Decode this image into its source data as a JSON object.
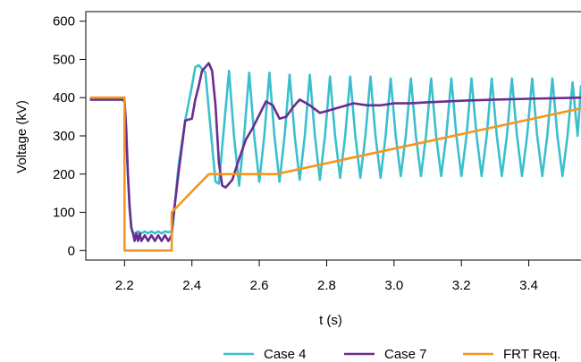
{
  "chart_data": {
    "type": "line",
    "xlabel": "t (s)",
    "ylabel": "Voltage (kV)",
    "xlim": [
      2.085,
      3.555
    ],
    "ylim": [
      -25,
      625
    ],
    "xticks": [
      2.2,
      2.4,
      2.6,
      2.8,
      3.0,
      3.2,
      3.4
    ],
    "xtick_labels": [
      "2.2",
      "2.4",
      "2.6",
      "2.8",
      "3.0",
      "3.2",
      "3.4"
    ],
    "yticks": [
      0,
      100,
      200,
      300,
      400,
      500,
      600
    ],
    "ytick_labels": [
      "0",
      "100",
      "200",
      "300",
      "400",
      "500",
      "600"
    ],
    "grid": false,
    "legend_position": "bottom",
    "series": [
      {
        "name": "Case 4",
        "color": "#3bbfce",
        "x": [
          2.1,
          2.19,
          2.2,
          2.21,
          2.215,
          2.22,
          2.225,
          2.23,
          2.24,
          2.25,
          2.26,
          2.27,
          2.28,
          2.29,
          2.3,
          2.31,
          2.32,
          2.33,
          2.34,
          2.345,
          2.36,
          2.38,
          2.4,
          2.41,
          2.42,
          2.44,
          2.47,
          2.48,
          2.495,
          2.51,
          2.525,
          2.54,
          2.555,
          2.57,
          2.585,
          2.6,
          2.615,
          2.63,
          2.645,
          2.66,
          2.675,
          2.69,
          2.705,
          2.72,
          2.735,
          2.75,
          2.765,
          2.78,
          2.795,
          2.81,
          2.825,
          2.84,
          2.855,
          2.87,
          2.885,
          2.9,
          2.915,
          2.93,
          2.945,
          2.96,
          2.975,
          2.99,
          3.005,
          3.02,
          3.035,
          3.05,
          3.065,
          3.08,
          3.095,
          3.11,
          3.125,
          3.14,
          3.155,
          3.17,
          3.185,
          3.2,
          3.215,
          3.23,
          3.245,
          3.26,
          3.275,
          3.29,
          3.305,
          3.32,
          3.335,
          3.35,
          3.365,
          3.38,
          3.395,
          3.41,
          3.425,
          3.44,
          3.455,
          3.47,
          3.485,
          3.5,
          3.515,
          3.53,
          3.545,
          3.555
        ],
        "y": [
          395,
          395,
          390,
          200,
          120,
          60,
          45,
          45,
          50,
          45,
          50,
          45,
          50,
          45,
          50,
          45,
          50,
          48,
          50,
          80,
          220,
          340,
          430,
          480,
          485,
          465,
          180,
          175,
          320,
          470,
          300,
          170,
          300,
          465,
          300,
          180,
          300,
          465,
          300,
          180,
          300,
          460,
          300,
          185,
          300,
          460,
          300,
          185,
          300,
          455,
          300,
          190,
          300,
          455,
          300,
          190,
          300,
          455,
          300,
          190,
          300,
          450,
          300,
          195,
          300,
          450,
          300,
          195,
          300,
          450,
          300,
          195,
          300,
          450,
          300,
          195,
          300,
          450,
          300,
          195,
          300,
          450,
          300,
          195,
          300,
          450,
          300,
          195,
          300,
          450,
          300,
          195,
          300,
          450,
          300,
          195,
          300,
          440,
          300,
          430
        ]
      },
      {
        "name": "Case 7",
        "color": "#6a2c91",
        "x": [
          2.1,
          2.19,
          2.2,
          2.205,
          2.21,
          2.215,
          2.22,
          2.225,
          2.23,
          2.235,
          2.24,
          2.245,
          2.25,
          2.26,
          2.27,
          2.28,
          2.29,
          2.3,
          2.31,
          2.32,
          2.33,
          2.34,
          2.345,
          2.36,
          2.38,
          2.4,
          2.41,
          2.42,
          2.43,
          2.44,
          2.45,
          2.46,
          2.47,
          2.48,
          2.49,
          2.5,
          2.51,
          2.52,
          2.54,
          2.56,
          2.58,
          2.6,
          2.62,
          2.64,
          2.66,
          2.68,
          2.7,
          2.72,
          2.75,
          2.78,
          2.8,
          2.84,
          2.88,
          2.92,
          2.96,
          3.0,
          3.05,
          3.1,
          3.2,
          3.3,
          3.4,
          3.5,
          3.555
        ],
        "y": [
          395,
          395,
          395,
          320,
          200,
          110,
          60,
          45,
          25,
          45,
          25,
          45,
          25,
          40,
          25,
          40,
          25,
          40,
          25,
          40,
          25,
          40,
          90,
          200,
          340,
          345,
          395,
          430,
          470,
          480,
          490,
          470,
          380,
          230,
          170,
          165,
          175,
          185,
          240,
          290,
          320,
          355,
          390,
          380,
          345,
          350,
          375,
          395,
          380,
          360,
          365,
          375,
          385,
          380,
          380,
          385,
          385,
          388,
          392,
          395,
          397,
          399,
          400
        ]
      },
      {
        "name": "FRT Req.",
        "color": "#f5961e",
        "x": [
          2.1,
          2.2,
          2.2,
          2.34,
          2.34,
          2.45,
          2.65,
          3.555
        ],
        "y": [
          400,
          400,
          0,
          0,
          100,
          200,
          200,
          372
        ]
      }
    ]
  }
}
